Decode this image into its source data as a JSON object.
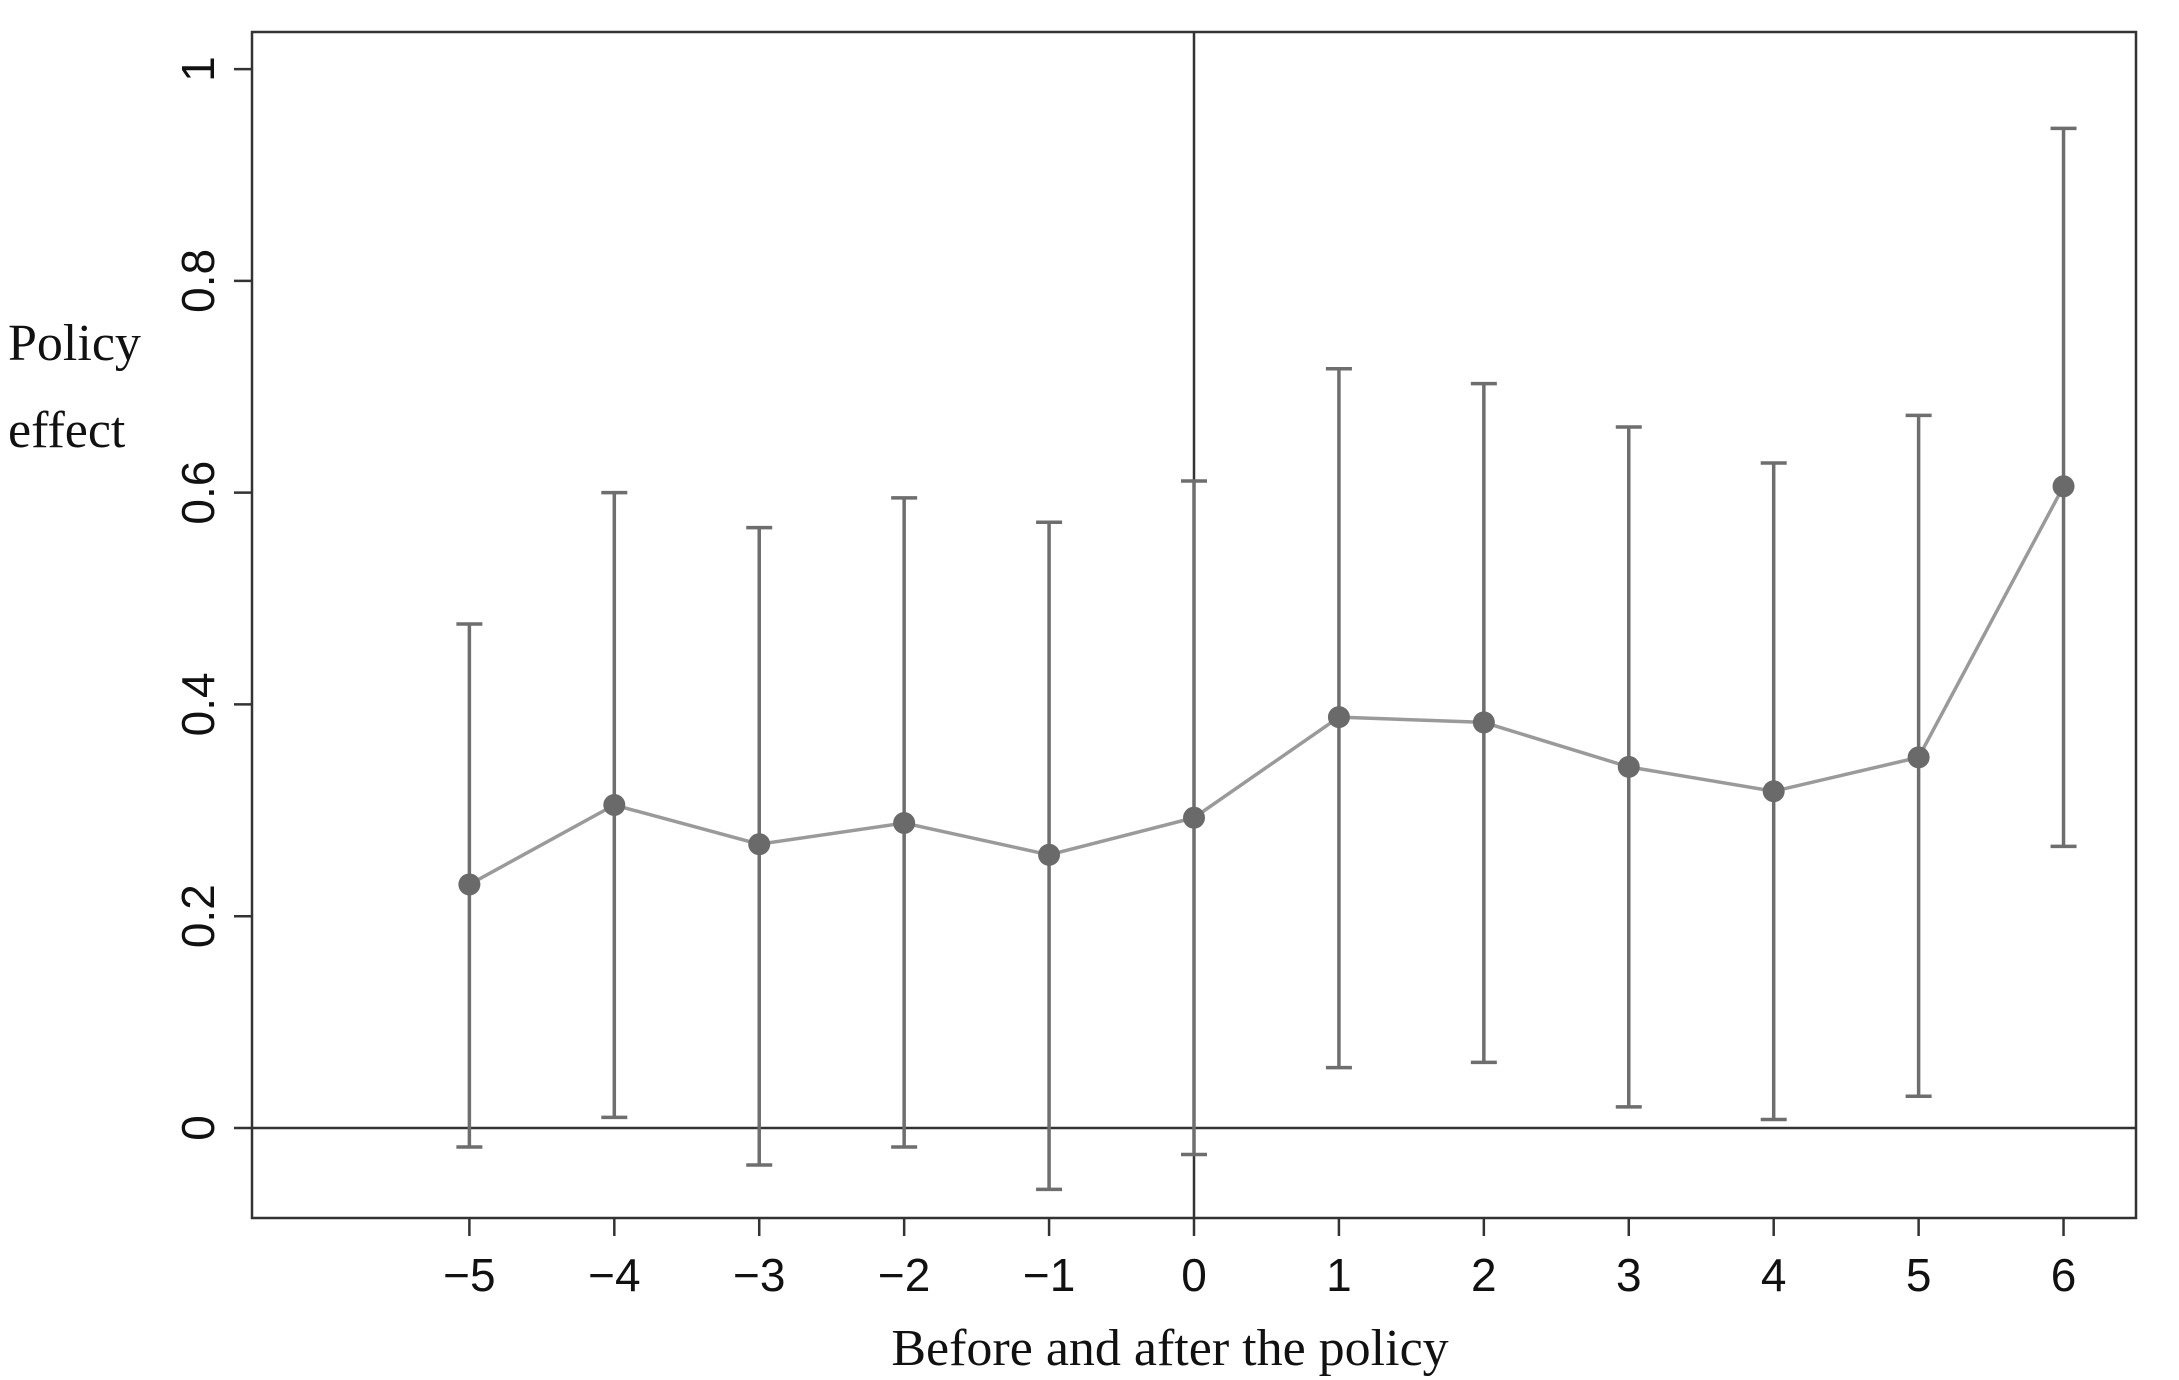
{
  "chart_data": {
    "type": "line",
    "title": "",
    "xlabel": "Before and after the policy",
    "ylabel_lines": [
      "Policy",
      "effect"
    ],
    "x": [
      -5,
      -4,
      -3,
      -2,
      -1,
      0,
      1,
      2,
      3,
      4,
      5,
      6
    ],
    "x_tick_labels": [
      "−5",
      "−4",
      "−3",
      "−2",
      "−1",
      "0",
      "1",
      "2",
      "3",
      "4",
      "5",
      "6"
    ],
    "y_ticks": [
      0,
      0.2,
      0.4,
      0.6,
      0.8,
      1
    ],
    "y_tick_labels": [
      "0",
      "0.2",
      "0.4",
      "0.6",
      "0.8",
      "1"
    ],
    "xlim": [
      -6.5,
      6.5
    ],
    "ylim": [
      -0.085,
      1.035
    ],
    "series": [
      {
        "values": [
          0.23,
          0.305,
          0.268,
          0.288,
          0.258,
          0.293,
          0.388,
          0.383,
          0.341,
          0.318,
          0.35,
          0.606
        ],
        "ci_low": [
          -0.018,
          0.01,
          -0.035,
          -0.018,
          -0.058,
          -0.025,
          0.057,
          0.062,
          0.02,
          0.008,
          0.03,
          0.266
        ],
        "ci_high": [
          0.476,
          0.6,
          0.567,
          0.595,
          0.572,
          0.611,
          0.717,
          0.703,
          0.662,
          0.628,
          0.673,
          0.944
        ]
      }
    ],
    "reference_lines": {
      "x": 0,
      "y": 0
    },
    "grid": false,
    "legend": "none",
    "colors": {
      "line": "#9a9a9a",
      "marker": "#6a6a6a",
      "errorbar": "#6e6e6e",
      "axis": "#333333"
    }
  }
}
